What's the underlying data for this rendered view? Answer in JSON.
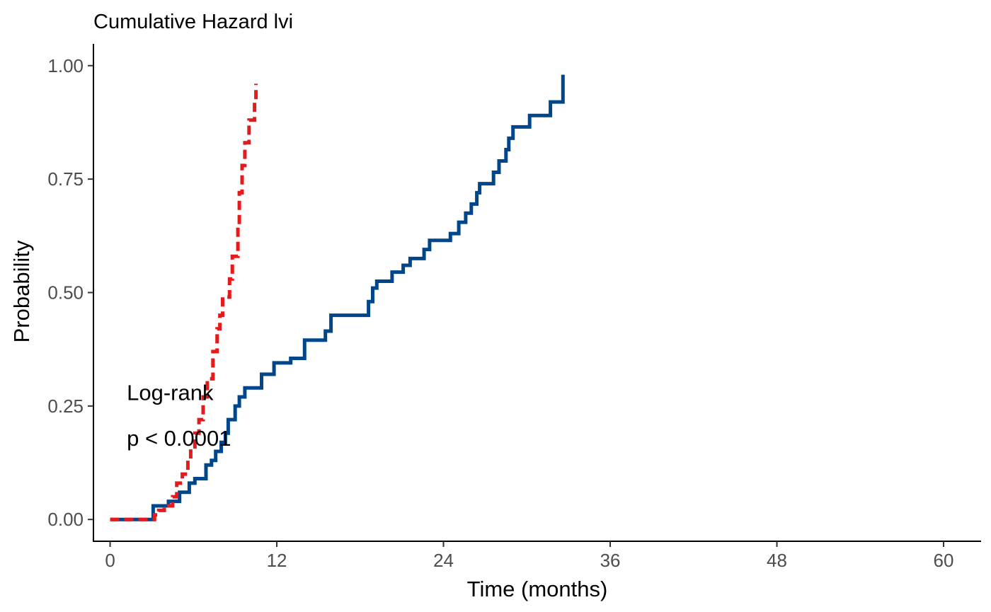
{
  "chart_data": {
    "type": "line",
    "title": "Cumulative Hazard lvi",
    "xlabel": "Time (months)",
    "ylabel": "Probability",
    "xlim": [
      -1.2,
      62.7
    ],
    "ylim": [
      -0.048,
      1.048
    ],
    "x_ticks": [
      0,
      12,
      24,
      36,
      48,
      60
    ],
    "x_tick_labels": [
      "0",
      "12",
      "24",
      "36",
      "48",
      "60"
    ],
    "y_ticks": [
      0,
      0.25,
      0.5,
      0.75,
      1.0
    ],
    "y_tick_labels": [
      "0.00",
      "0.25",
      "0.50",
      "0.75",
      "1.00"
    ],
    "grid": false,
    "legend": "none",
    "annotations": [
      {
        "text": "Log-rank",
        "x": 1.2,
        "y": 0.28
      },
      {
        "text": "p < 0.0001",
        "x": 1.2,
        "y": 0.18
      }
    ],
    "series": [
      {
        "color": "#e41a1c",
        "dash": "dashed",
        "points": [
          [
            0,
            0
          ],
          [
            3.2,
            0
          ],
          [
            3.2,
            0.01
          ],
          [
            3.5,
            0.01
          ],
          [
            3.5,
            0.02
          ],
          [
            3.9,
            0.02
          ],
          [
            3.9,
            0.03
          ],
          [
            4.5,
            0.03
          ],
          [
            4.5,
            0.05
          ],
          [
            4.8,
            0.05
          ],
          [
            4.8,
            0.08
          ],
          [
            5.2,
            0.08
          ],
          [
            5.2,
            0.1
          ],
          [
            5.6,
            0.1
          ],
          [
            5.6,
            0.13
          ],
          [
            5.8,
            0.13
          ],
          [
            5.8,
            0.16
          ],
          [
            6.1,
            0.16
          ],
          [
            6.1,
            0.19
          ],
          [
            6.4,
            0.19
          ],
          [
            6.4,
            0.22
          ],
          [
            6.7,
            0.22
          ],
          [
            6.7,
            0.27
          ],
          [
            7.0,
            0.27
          ],
          [
            7.0,
            0.31
          ],
          [
            7.4,
            0.31
          ],
          [
            7.4,
            0.37
          ],
          [
            7.7,
            0.37
          ],
          [
            7.7,
            0.42
          ],
          [
            7.9,
            0.42
          ],
          [
            7.9,
            0.45
          ],
          [
            8.1,
            0.45
          ],
          [
            8.1,
            0.49
          ],
          [
            8.6,
            0.49
          ],
          [
            8.6,
            0.53
          ],
          [
            8.8,
            0.53
          ],
          [
            8.8,
            0.58
          ],
          [
            9.2,
            0.58
          ],
          [
            9.2,
            0.65
          ],
          [
            9.3,
            0.65
          ],
          [
            9.3,
            0.72
          ],
          [
            9.5,
            0.72
          ],
          [
            9.5,
            0.78
          ],
          [
            9.7,
            0.78
          ],
          [
            9.7,
            0.83
          ],
          [
            10.0,
            0.83
          ],
          [
            10.0,
            0.88
          ],
          [
            10.4,
            0.88
          ],
          [
            10.4,
            0.92
          ],
          [
            10.5,
            0.92
          ],
          [
            10.5,
            0.96
          ]
        ]
      },
      {
        "color": "#00468b",
        "dash": "solid",
        "points": [
          [
            0,
            0
          ],
          [
            3.1,
            0
          ],
          [
            3.1,
            0.03
          ],
          [
            4.2,
            0.03
          ],
          [
            4.2,
            0.04
          ],
          [
            5.0,
            0.04
          ],
          [
            5.0,
            0.06
          ],
          [
            5.7,
            0.06
          ],
          [
            5.7,
            0.08
          ],
          [
            6.1,
            0.08
          ],
          [
            6.1,
            0.09
          ],
          [
            6.9,
            0.09
          ],
          [
            6.9,
            0.12
          ],
          [
            7.3,
            0.12
          ],
          [
            7.3,
            0.13
          ],
          [
            7.6,
            0.13
          ],
          [
            7.6,
            0.15
          ],
          [
            8.0,
            0.15
          ],
          [
            8.0,
            0.17
          ],
          [
            8.3,
            0.17
          ],
          [
            8.3,
            0.19
          ],
          [
            8.5,
            0.19
          ],
          [
            8.5,
            0.22
          ],
          [
            9.0,
            0.22
          ],
          [
            9.0,
            0.25
          ],
          [
            9.3,
            0.25
          ],
          [
            9.3,
            0.27
          ],
          [
            9.7,
            0.27
          ],
          [
            9.7,
            0.29
          ],
          [
            10.9,
            0.29
          ],
          [
            10.9,
            0.32
          ],
          [
            11.8,
            0.32
          ],
          [
            11.8,
            0.345
          ],
          [
            13.0,
            0.345
          ],
          [
            13.0,
            0.355
          ],
          [
            14.0,
            0.355
          ],
          [
            14.0,
            0.395
          ],
          [
            15.5,
            0.395
          ],
          [
            15.5,
            0.415
          ],
          [
            15.9,
            0.415
          ],
          [
            15.9,
            0.45
          ],
          [
            18.6,
            0.45
          ],
          [
            18.6,
            0.48
          ],
          [
            18.9,
            0.48
          ],
          [
            18.9,
            0.51
          ],
          [
            19.2,
            0.51
          ],
          [
            19.2,
            0.525
          ],
          [
            20.3,
            0.525
          ],
          [
            20.3,
            0.545
          ],
          [
            21.1,
            0.545
          ],
          [
            21.1,
            0.56
          ],
          [
            21.6,
            0.56
          ],
          [
            21.6,
            0.575
          ],
          [
            22.6,
            0.575
          ],
          [
            22.6,
            0.595
          ],
          [
            23.0,
            0.595
          ],
          [
            23.0,
            0.615
          ],
          [
            24.5,
            0.615
          ],
          [
            24.5,
            0.63
          ],
          [
            25.1,
            0.63
          ],
          [
            25.1,
            0.655
          ],
          [
            25.6,
            0.655
          ],
          [
            25.6,
            0.675
          ],
          [
            26.0,
            0.675
          ],
          [
            26.0,
            0.695
          ],
          [
            26.4,
            0.695
          ],
          [
            26.4,
            0.72
          ],
          [
            26.6,
            0.72
          ],
          [
            26.6,
            0.74
          ],
          [
            27.6,
            0.74
          ],
          [
            27.6,
            0.765
          ],
          [
            28.0,
            0.765
          ],
          [
            28.0,
            0.79
          ],
          [
            28.5,
            0.79
          ],
          [
            28.5,
            0.815
          ],
          [
            28.7,
            0.815
          ],
          [
            28.7,
            0.84
          ],
          [
            29.0,
            0.84
          ],
          [
            29.0,
            0.865
          ],
          [
            30.2,
            0.865
          ],
          [
            30.2,
            0.89
          ],
          [
            31.7,
            0.89
          ],
          [
            31.7,
            0.92
          ],
          [
            32.6,
            0.92
          ],
          [
            32.6,
            0.955
          ],
          [
            32.6,
            0.98
          ]
        ]
      }
    ]
  }
}
